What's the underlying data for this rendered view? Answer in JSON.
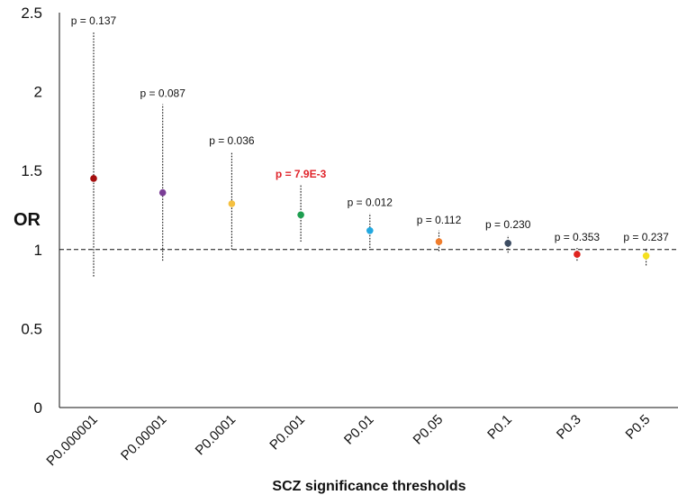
{
  "chart_data": {
    "type": "scatter",
    "xlabel": "SCZ significance thresholds",
    "ylabel": "OR",
    "ylim": [
      0,
      2.5
    ],
    "yticks": [
      "0",
      "0.5",
      "1",
      "1.5",
      "2",
      "2.5"
    ],
    "reference_line": 1,
    "categories": [
      "P0.000001",
      "P0.00001",
      "P0.0001",
      "P0.001",
      "P0.01",
      "P0.05",
      "P0.1",
      "P0.3",
      "P0.5"
    ],
    "points": [
      {
        "category": "P0.000001",
        "or": 1.45,
        "ci_low": 0.83,
        "ci_high": 2.38,
        "p_label": "p = 0.137",
        "color": "#a50f0f",
        "highlight": false
      },
      {
        "category": "P0.00001",
        "or": 1.36,
        "ci_low": 0.93,
        "ci_high": 1.92,
        "p_label": "p = 0.087",
        "color": "#7a3d96",
        "highlight": false
      },
      {
        "category": "P0.0001",
        "or": 1.29,
        "ci_low": 1.0,
        "ci_high": 1.62,
        "p_label": "p = 0.036",
        "color": "#f5c040",
        "highlight": false
      },
      {
        "category": "P0.001",
        "or": 1.22,
        "ci_low": 1.05,
        "ci_high": 1.41,
        "p_label": "p = 7.9E-3",
        "color": "#1e9e50",
        "highlight": true
      },
      {
        "category": "P0.01",
        "or": 1.12,
        "ci_low": 1.01,
        "ci_high": 1.23,
        "p_label": "p = 0.012",
        "color": "#22a8e0",
        "highlight": false
      },
      {
        "category": "P0.05",
        "or": 1.05,
        "ci_low": 0.99,
        "ci_high": 1.12,
        "p_label": "p = 0.112",
        "color": "#f07d2c",
        "highlight": false
      },
      {
        "category": "P0.1",
        "or": 1.04,
        "ci_low": 0.98,
        "ci_high": 1.09,
        "p_label": "p = 0.230",
        "color": "#3d4d63",
        "highlight": false
      },
      {
        "category": "P0.3",
        "or": 0.97,
        "ci_low": 0.93,
        "ci_high": 1.01,
        "p_label": "p = 0.353",
        "color": "#e0241f",
        "highlight": false
      },
      {
        "category": "P0.5",
        "or": 0.96,
        "ci_low": 0.9,
        "ci_high": 1.01,
        "p_label": "p = 0.237",
        "color": "#f5e020",
        "highlight": false
      }
    ],
    "grid": false,
    "legend": "none"
  }
}
